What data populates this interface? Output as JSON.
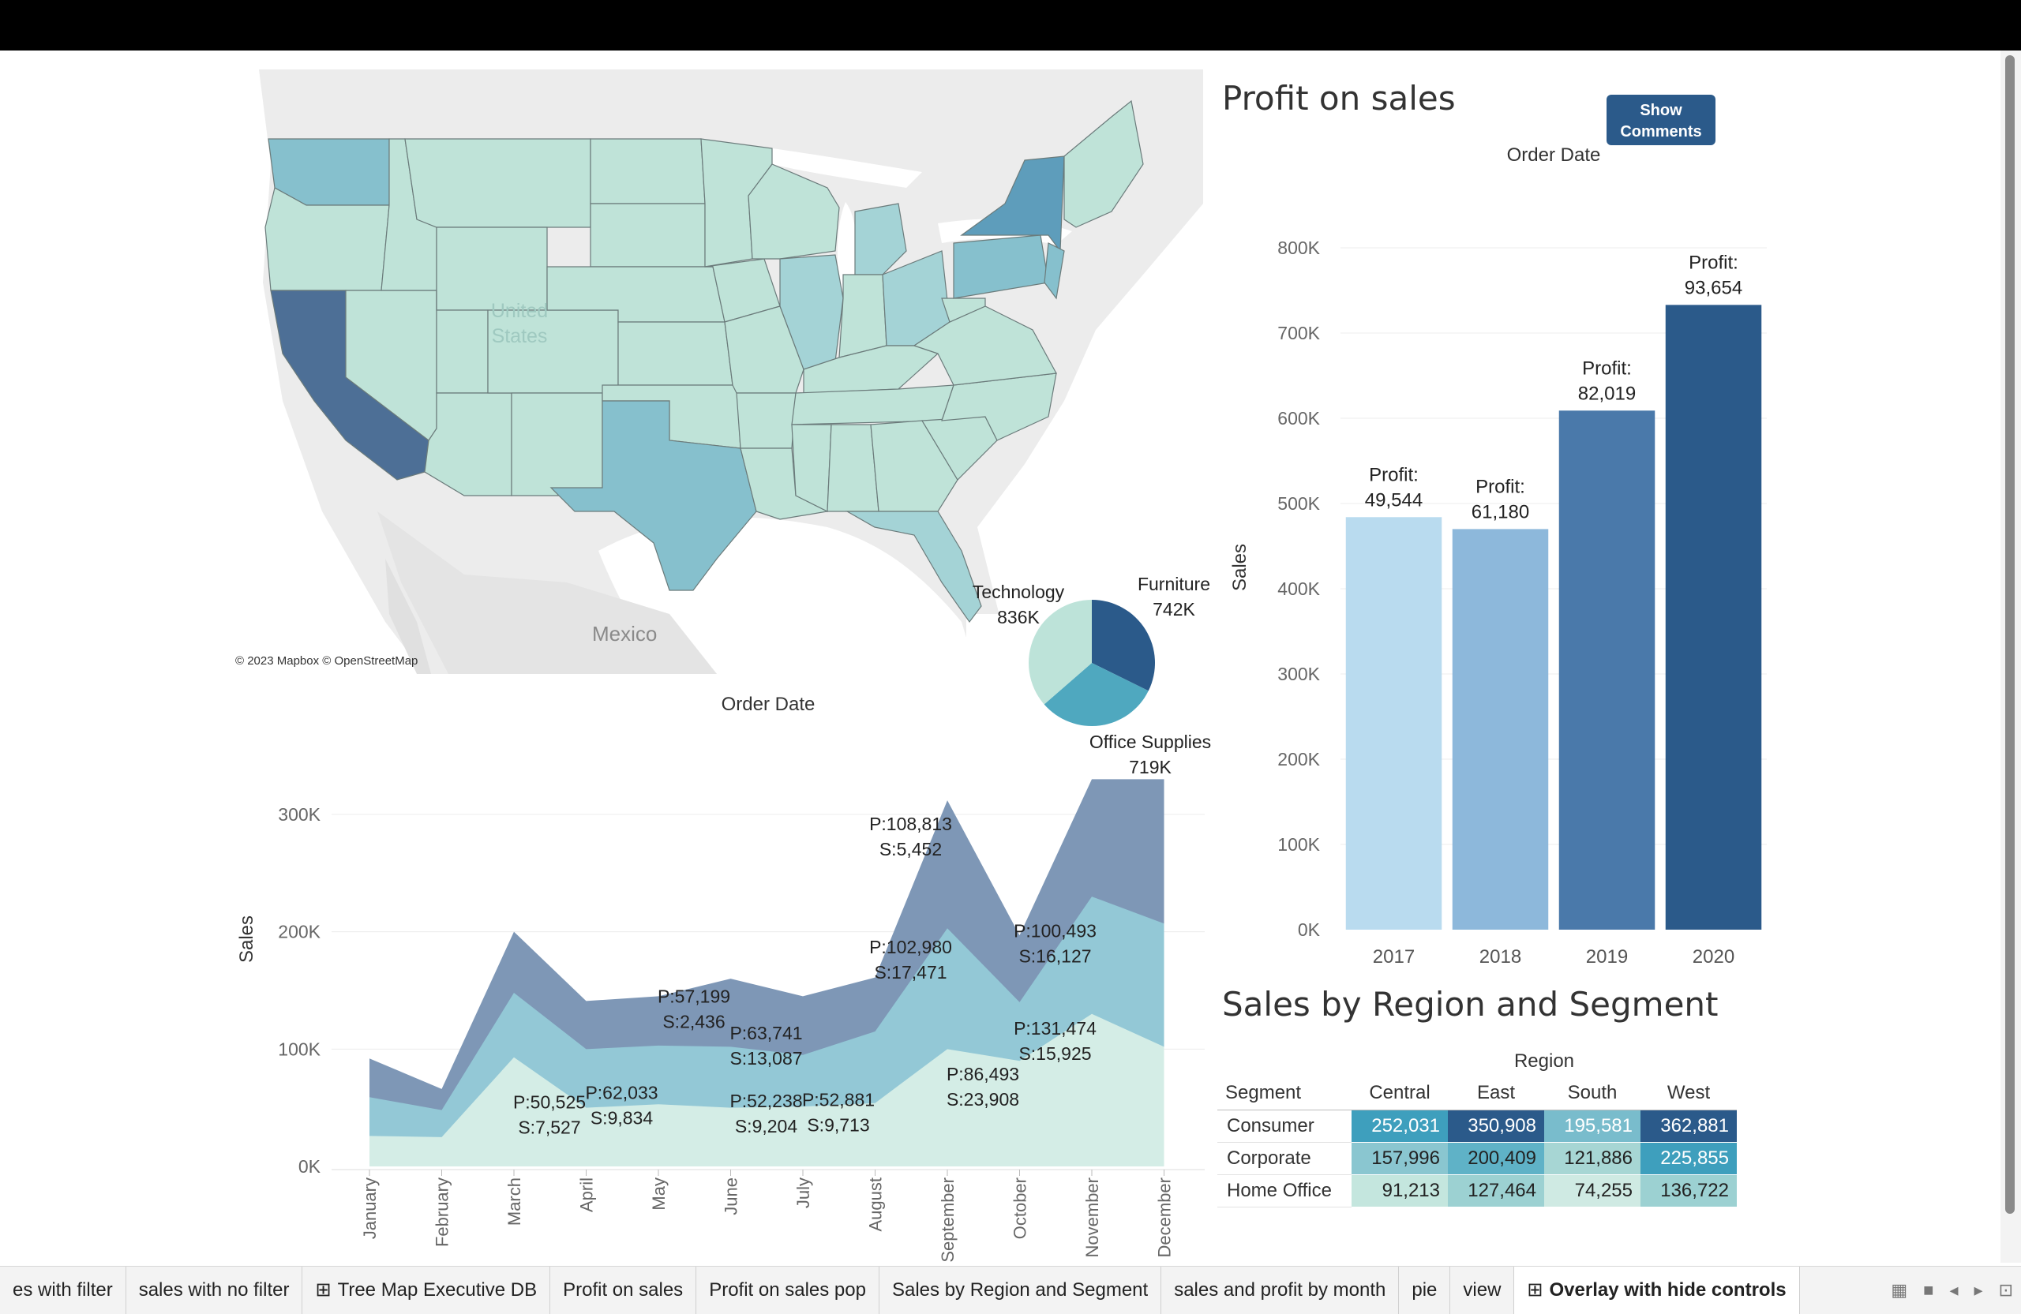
{
  "colors": {
    "accent": "#2b5a8a",
    "map_light": "#bfe3d8",
    "map_dark": "#4d6f96"
  },
  "map": {
    "label_country": [
      "United",
      "States"
    ],
    "label_mexico": "Mexico",
    "credit": "© 2023 Mapbox © OpenStreetMap"
  },
  "pie": {
    "slices": [
      {
        "label": "Technology",
        "value_label": "836K",
        "value": 836,
        "color": "#bde3d9"
      },
      {
        "label": "Furniture",
        "value_label": "742K",
        "value": 742,
        "color": "#2b5a8a"
      },
      {
        "label": "Office Supplies",
        "value_label": "719K",
        "value": 719,
        "color": "#4fa8bf"
      }
    ]
  },
  "profit": {
    "title": "Profit on  sales",
    "button": [
      "Show",
      "Comments"
    ]
  },
  "region_table": {
    "title": "Sales by Region and Segment",
    "column_group": "Region",
    "row_header": "Segment",
    "columns": [
      "Central",
      "East",
      "South",
      "West"
    ],
    "rows": [
      {
        "segment": "Consumer",
        "values": [
          "252,031",
          "350,908",
          "195,581",
          "362,881"
        ],
        "colors": [
          "#3e9fbd",
          "#2b5a8a",
          "#79bccc",
          "#2b5a8a"
        ],
        "text_colors": [
          "#ffffff",
          "#ffffff",
          "#ffffff",
          "#ffffff"
        ]
      },
      {
        "segment": "Corporate",
        "values": [
          "157,996",
          "200,409",
          "121,886",
          "225,855"
        ],
        "colors": [
          "#8ac6d0",
          "#5fb2c7",
          "#a7d6d4",
          "#3e9fbd"
        ],
        "text_colors": [
          "#222222",
          "#222222",
          "#222222",
          "#ffffff"
        ]
      },
      {
        "segment": "Home Office",
        "values": [
          "91,213",
          "127,464",
          "74,255",
          "136,722"
        ],
        "colors": [
          "#c4e6de",
          "#9cd1d2",
          "#cfeae3",
          "#9cd1d2"
        ],
        "text_colors": [
          "#222222",
          "#222222",
          "#222222",
          "#222222"
        ]
      }
    ]
  },
  "tabs": [
    {
      "label": "es with filter",
      "icon": "",
      "active": false
    },
    {
      "label": "sales with no filter",
      "icon": "",
      "active": false
    },
    {
      "label": "Tree Map Executive DB",
      "icon": "dashboard-icon",
      "active": false
    },
    {
      "label": "Profit on  sales",
      "icon": "",
      "active": false
    },
    {
      "label": "Profit on  sales pop",
      "icon": "",
      "active": false
    },
    {
      "label": "Sales by Region and Segment",
      "icon": "",
      "active": false
    },
    {
      "label": "sales and profit by month",
      "icon": "",
      "active": false
    },
    {
      "label": "pie",
      "icon": "",
      "active": false
    },
    {
      "label": "view",
      "icon": "",
      "active": false
    },
    {
      "label": "Overlay with hide controls",
      "icon": "dashboard-icon",
      "active": true
    }
  ],
  "chart_data": [
    {
      "type": "bar",
      "title": "Order Date",
      "xlabel": "",
      "ylabel": "Sales",
      "categories": [
        "2017",
        "2018",
        "2019",
        "2020"
      ],
      "values": [
        484000,
        470000,
        609000,
        733000
      ],
      "bar_colors": [
        "#b9dbef",
        "#8db8db",
        "#4a79aa",
        "#2b5a8a"
      ],
      "data_labels": [
        [
          "Profit:",
          "49,544"
        ],
        [
          "Profit:",
          "61,180"
        ],
        [
          "Profit:",
          "82,019"
        ],
        [
          "Profit:",
          "93,654"
        ]
      ],
      "ylim": [
        0,
        850000
      ],
      "yticks": [
        0,
        100000,
        200000,
        300000,
        400000,
        500000,
        600000,
        700000,
        800000
      ],
      "ytick_labels": [
        "0K",
        "100K",
        "200K",
        "300K",
        "400K",
        "500K",
        "600K",
        "700K",
        "800K"
      ],
      "grid": true
    },
    {
      "type": "area",
      "title": "Order Date",
      "xlabel": "",
      "ylabel": "Sales",
      "categories": [
        "January",
        "February",
        "March",
        "April",
        "May",
        "June",
        "July",
        "August",
        "September",
        "October",
        "November",
        "December"
      ],
      "series": [
        {
          "values": [
            26000,
            25000,
            93000,
            50000,
            53000,
            50000,
            51000,
            54000,
            100000,
            90000,
            130000,
            102000
          ],
          "color": "#d4ede6"
        },
        {
          "values": [
            59000,
            48000,
            148000,
            100000,
            103000,
            102000,
            95000,
            115000,
            203000,
            140000,
            230000,
            207000
          ],
          "color": "#93c8d6"
        },
        {
          "values": [
            92000,
            66000,
            200000,
            141000,
            145000,
            160000,
            145000,
            161000,
            312000,
            197000,
            330000,
            330000
          ],
          "color": "#7e97b6"
        }
      ],
      "annotations": [
        {
          "month": "March",
          "value": 36000,
          "lines": [
            "P:50,525",
            "S:7,527"
          ]
        },
        {
          "month": "April",
          "value": 44000,
          "lines": [
            "P:62,033",
            "S:9,834"
          ]
        },
        {
          "month": "June",
          "value": 37000,
          "lines": [
            "P:52,238",
            "S:9,204"
          ]
        },
        {
          "month": "May",
          "value": 126000,
          "lines": [
            "P:57,199",
            "S:2,436"
          ]
        },
        {
          "month": "June",
          "value": 95000,
          "lines": [
            "P:63,741",
            "S:13,087"
          ]
        },
        {
          "month": "July",
          "value": 38000,
          "lines": [
            "P:52,881",
            "S:9,713"
          ]
        },
        {
          "month": "August",
          "value": 273000,
          "lines": [
            "P:108,813",
            "S:5,452"
          ]
        },
        {
          "month": "August",
          "value": 168000,
          "lines": [
            "P:102,980",
            "S:17,471"
          ]
        },
        {
          "month": "September",
          "value": 60000,
          "lines": [
            "P:86,493",
            "S:23,908"
          ]
        },
        {
          "month": "October",
          "value": 182000,
          "lines": [
            "P:100,493",
            "S:16,127"
          ]
        },
        {
          "month": "October",
          "value": 99000,
          "lines": [
            "P:131,474",
            "S:15,925"
          ]
        }
      ],
      "ylim": [
        0,
        300000
      ],
      "yticks": [
        0,
        100000,
        200000,
        300000
      ],
      "ytick_labels": [
        "0K",
        "100K",
        "200K",
        "300K"
      ],
      "grid": true
    }
  ]
}
